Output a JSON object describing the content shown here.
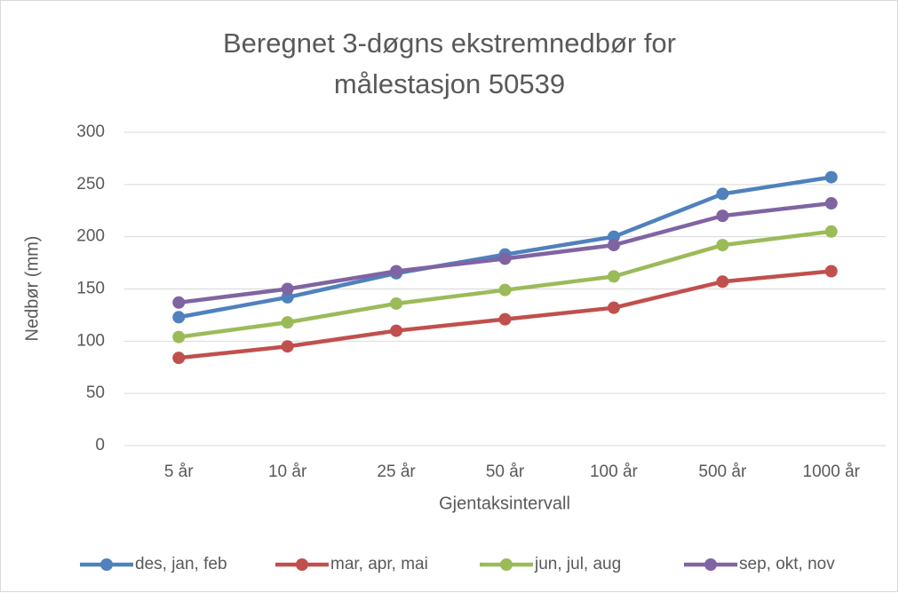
{
  "chart_data": {
    "type": "line",
    "title": "Beregnet 3-døgns ekstremnedbør for målestasjon 50539",
    "x_label": "Gjentaksintervall",
    "y_label": "Nedbør (mm)",
    "categories": [
      "5 år",
      "10 år",
      "25 år",
      "50 år",
      "100 år",
      "500 år",
      "1000 år"
    ],
    "series": [
      {
        "name": "des, jan, feb",
        "color": "#4f81bd",
        "values": [
          123,
          142,
          165,
          183,
          200,
          241,
          257
        ]
      },
      {
        "name": "mar, apr, mai",
        "color": "#c0504d",
        "values": [
          84,
          95,
          110,
          121,
          132,
          157,
          167
        ]
      },
      {
        "name": "jun, jul, aug",
        "color": "#9bbb59",
        "values": [
          104,
          118,
          136,
          149,
          162,
          192,
          205
        ]
      },
      {
        "name": "sep, okt, nov",
        "color": "#8064a2",
        "values": [
          137,
          150,
          167,
          179,
          192,
          220,
          232
        ]
      }
    ],
    "ylim": [
      0,
      300
    ],
    "yticks": [
      0,
      50,
      100,
      150,
      200,
      250,
      300
    ],
    "grid": true,
    "legend": "bottom"
  }
}
